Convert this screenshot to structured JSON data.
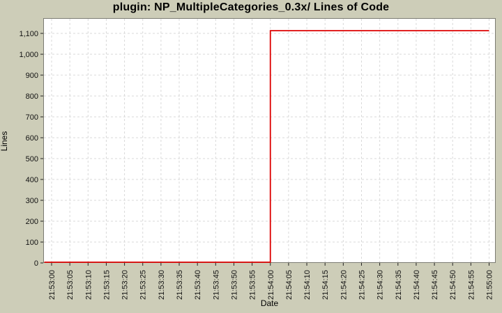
{
  "chart_data": {
    "type": "line",
    "line_style": "step-post",
    "title": "plugin: NP_MultipleCategories_0.3x/ Lines of Code",
    "xlabel": "Date",
    "ylabel": "Lines",
    "x": [
      "21:53:00",
      "21:53:05",
      "21:53:10",
      "21:53:15",
      "21:53:20",
      "21:53:25",
      "21:53:30",
      "21:53:35",
      "21:53:40",
      "21:53:45",
      "21:53:50",
      "21:53:55",
      "21:54:00",
      "21:54:05",
      "21:54:10",
      "21:54:15",
      "21:54:20",
      "21:54:25",
      "21:54:30",
      "21:54:35",
      "21:54:40",
      "21:54:45",
      "21:54:50",
      "21:54:55",
      "21:55:00"
    ],
    "series": [
      {
        "name": "Lines of Code",
        "color": "#dd0000",
        "values": [
          0,
          0,
          0,
          0,
          0,
          0,
          0,
          0,
          0,
          0,
          0,
          0,
          1113,
          1113,
          1113,
          1113,
          1113,
          1113,
          1113,
          1113,
          1113,
          1113,
          1113,
          1113,
          1113
        ]
      }
    ],
    "y_ticks": [
      "0",
      "100",
      "200",
      "300",
      "400",
      "500",
      "600",
      "700",
      "800",
      "900",
      "1,000",
      "1,100"
    ],
    "ylim": [
      0,
      1170
    ],
    "grid": true,
    "legend": "none",
    "colors": {
      "background": "#cdcdb8",
      "plot_background": "#ffffff",
      "gridline": "#d9d9d9",
      "plot_border": "#7b7b72",
      "tick": "#222222",
      "tick_label": "#111111",
      "series": "#dd0000"
    }
  }
}
